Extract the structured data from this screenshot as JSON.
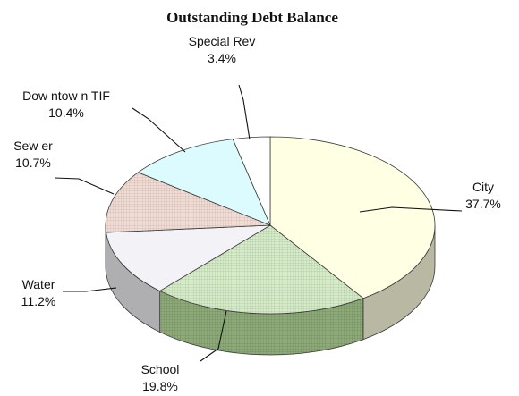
{
  "chart_data": {
    "type": "pie",
    "title": "Outstanding Debt Balance",
    "slices": [
      {
        "name": "City",
        "name_lines": [
          "City"
        ],
        "value": 37.7,
        "label": "37.7%",
        "color": "#ffffe3",
        "pattern": "none"
      },
      {
        "name": "School",
        "name_lines": [
          "School"
        ],
        "value": 19.8,
        "label": "19.8%",
        "color": "#cfe6c2",
        "pattern": "grid"
      },
      {
        "name": "Water",
        "name_lines": [
          "Water"
        ],
        "value": 11.2,
        "label": "11.2%",
        "color": "#f3f3f7",
        "pattern": "none"
      },
      {
        "name": "Sewer",
        "name_lines": [
          "Sew er"
        ],
        "value": 10.7,
        "label": "10.7%",
        "color": "#f0ddd5",
        "pattern": "grid"
      },
      {
        "name": "Downtown TIF",
        "name_lines": [
          "Dow ntow n TIF"
        ],
        "value": 10.4,
        "label": "10.4%",
        "color": "#dcfbff",
        "pattern": "none"
      },
      {
        "name": "Special Rev",
        "name_lines": [
          "Special Rev"
        ],
        "value": 3.4,
        "label": "3.4%",
        "color": "#ffffff",
        "pattern": "none"
      }
    ],
    "legend": "none",
    "style": "3d-tilted"
  }
}
